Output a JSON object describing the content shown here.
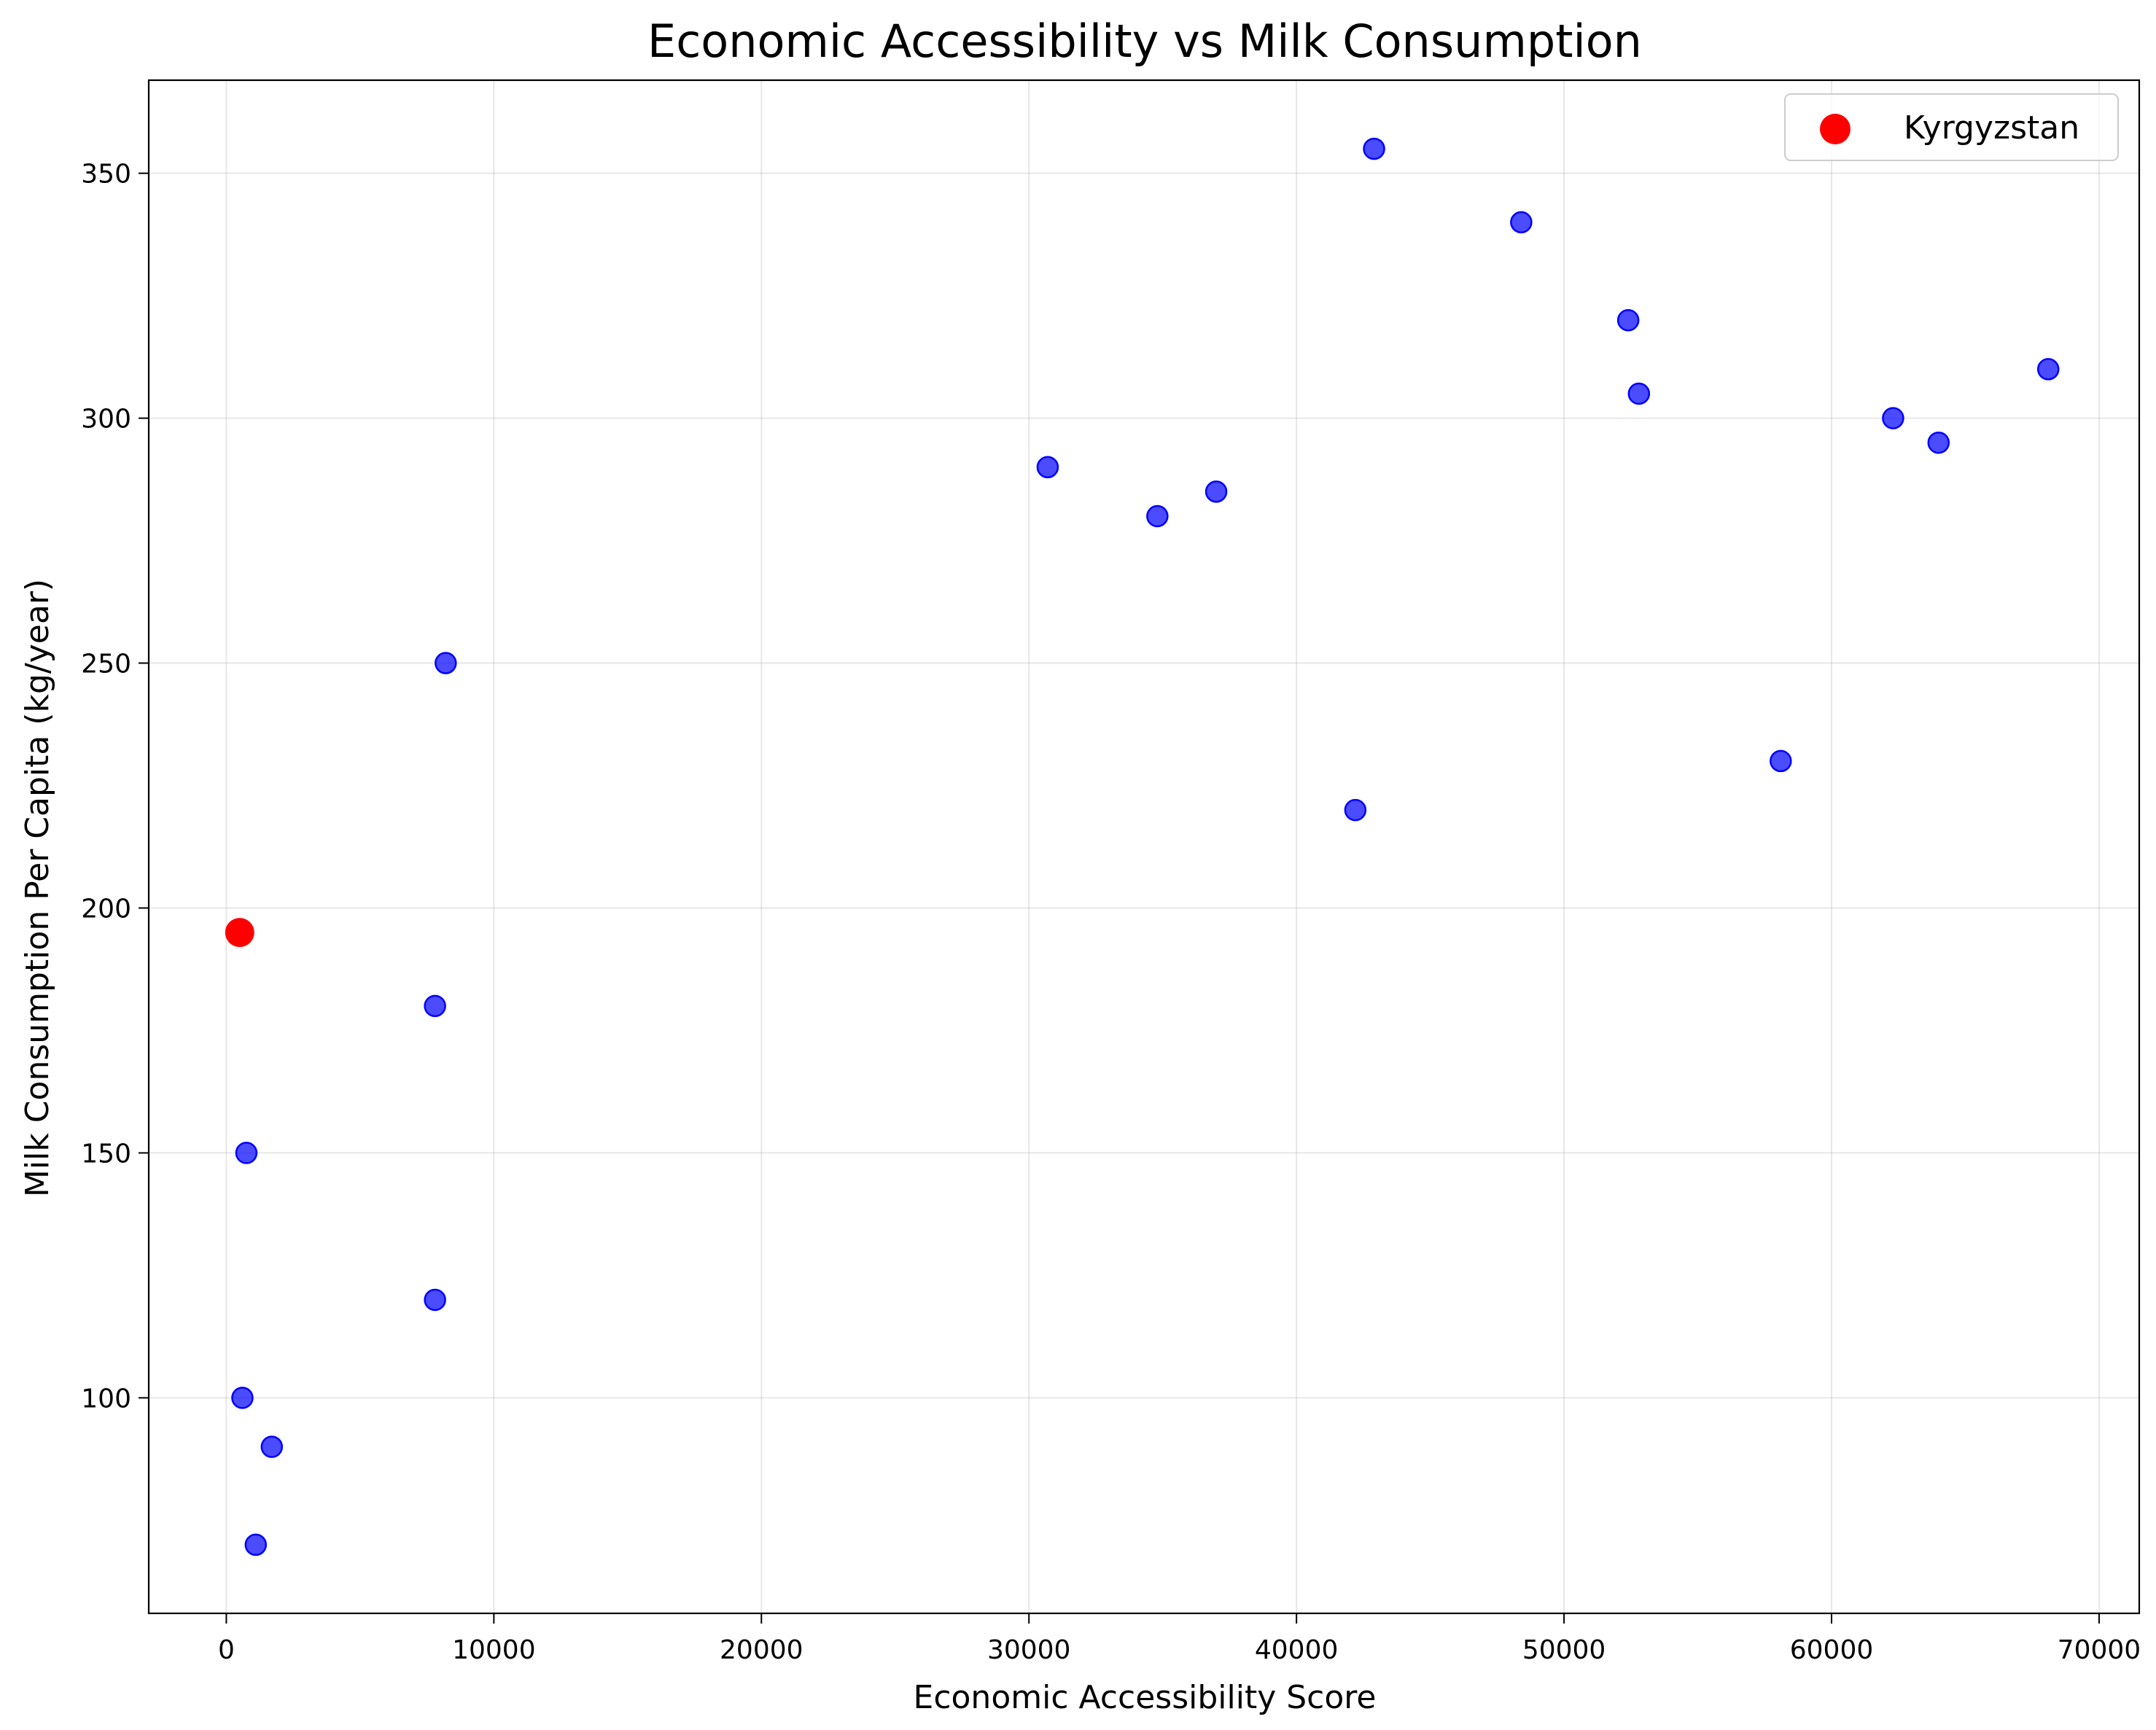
{
  "chart_data": {
    "type": "scatter",
    "title": "Economic Accessibility vs Milk Consumption",
    "xlabel": "Economic Accessibility Score",
    "ylabel": "Milk Consumption Per Capita (kg/year)",
    "xlim": [
      -2900,
      71500
    ],
    "ylim": [
      56,
      369
    ],
    "xticks": [
      0,
      10000,
      20000,
      30000,
      40000,
      50000,
      60000,
      70000
    ],
    "yticks": [
      100,
      150,
      200,
      250,
      300,
      350
    ],
    "grid": true,
    "legend": {
      "position": "top-right",
      "entries": [
        "Kyrgyzstan"
      ]
    },
    "series": [
      {
        "color": "#0000ff",
        "points": [
          [
            600,
            100
          ],
          [
            750,
            150
          ],
          [
            1100,
            70
          ],
          [
            1700,
            90
          ],
          [
            7800,
            120
          ],
          [
            7800,
            180
          ],
          [
            8200,
            250
          ],
          [
            30700,
            290
          ],
          [
            34800,
            280
          ],
          [
            37000,
            285
          ],
          [
            42200,
            220
          ],
          [
            42900,
            355
          ],
          [
            48400,
            340
          ],
          [
            52400,
            320
          ],
          [
            52800,
            305
          ],
          [
            58100,
            230
          ],
          [
            62300,
            300
          ],
          [
            64000,
            295
          ],
          [
            68100,
            310
          ]
        ]
      },
      {
        "name": "Kyrgyzstan",
        "color": "#ff0000",
        "points": [
          [
            500,
            195
          ]
        ]
      }
    ]
  }
}
